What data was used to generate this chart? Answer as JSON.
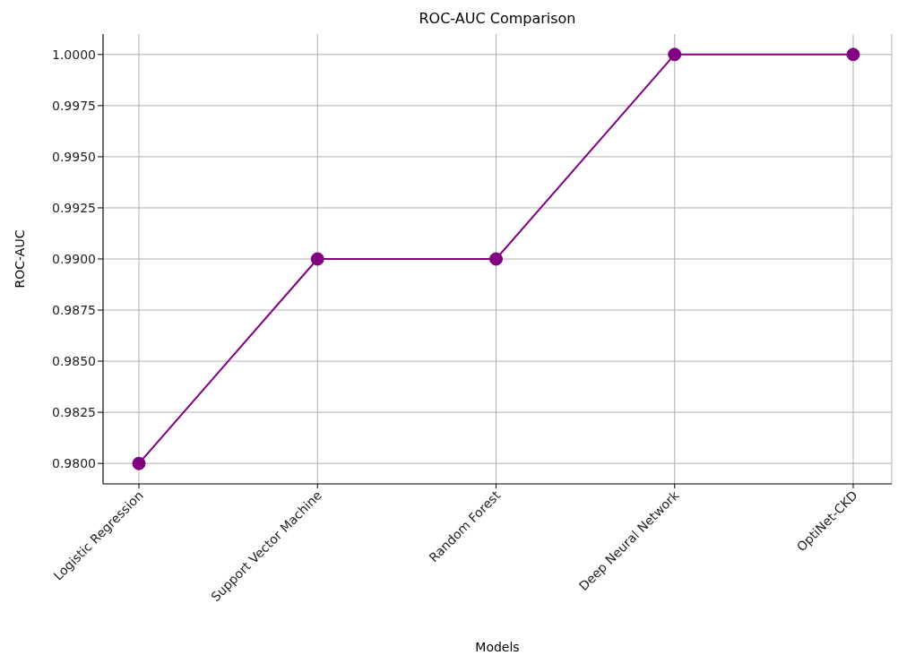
{
  "chart_data": {
    "type": "line",
    "title": "ROC-AUC Comparison",
    "xlabel": "Models",
    "ylabel": "ROC-AUC",
    "categories": [
      "Logistic Regression",
      "Support Vector Machine",
      "Random Forest",
      "Deep Neural Network",
      "OptiNet-CKD"
    ],
    "series": [
      {
        "color": "#800080",
        "values": [
          0.98,
          0.99,
          0.99,
          1.0,
          1.0
        ]
      }
    ],
    "ylim": [
      0.979,
      1.001
    ],
    "yticks": [
      {
        "value": 0.98,
        "label": "0.9800"
      },
      {
        "value": 0.9825,
        "label": "0.9825"
      },
      {
        "value": 0.985,
        "label": "0.9850"
      },
      {
        "value": 0.9875,
        "label": "0.9875"
      },
      {
        "value": 0.99,
        "label": "0.9900"
      },
      {
        "value": 0.9925,
        "label": "0.9925"
      },
      {
        "value": 0.995,
        "label": "0.9950"
      },
      {
        "value": 0.9975,
        "label": "0.9975"
      },
      {
        "value": 1.0,
        "label": "1.0000"
      }
    ],
    "grid": true,
    "marker": "circle",
    "line_style": "solid"
  }
}
